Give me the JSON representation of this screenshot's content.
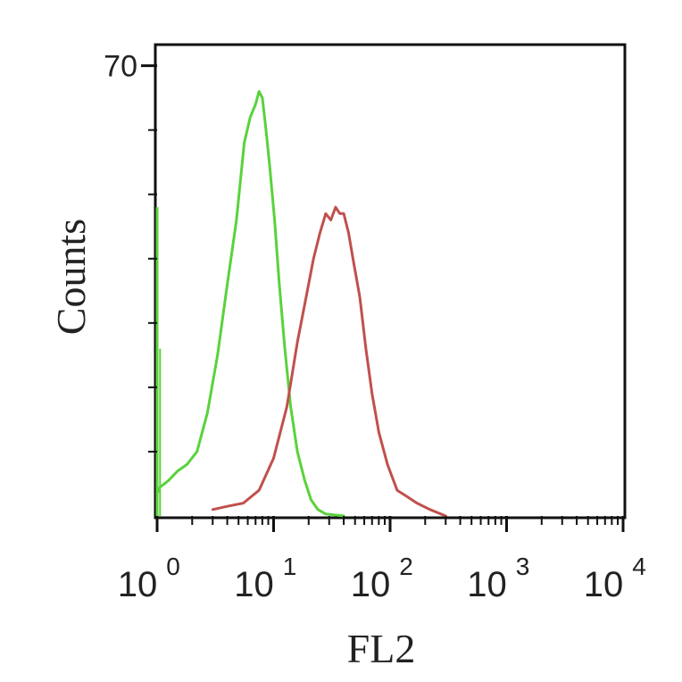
{
  "chart_data": {
    "type": "line",
    "title": "",
    "xlabel": "FL2",
    "ylabel": "Counts",
    "x_scale": "log",
    "xlim": [
      1,
      10000
    ],
    "ylim": [
      0,
      73
    ],
    "x_ticks": [
      {
        "base": "10",
        "exp": "0",
        "value": 1
      },
      {
        "base": "10",
        "exp": "1",
        "value": 10
      },
      {
        "base": "10",
        "exp": "2",
        "value": 100
      },
      {
        "base": "10",
        "exp": "3",
        "value": 1000
      },
      {
        "base": "10",
        "exp": "4",
        "value": 10000
      }
    ],
    "y_ticks": [
      {
        "label": "70",
        "value": 70
      }
    ],
    "grid": false,
    "series": [
      {
        "color": "#5ad23c",
        "x": [
          1.0,
          1.06,
          1.12,
          1.25,
          1.5,
          1.8,
          2.2,
          2.7,
          3.3,
          4.0,
          4.8,
          5.6,
          6.3,
          7.0,
          7.5,
          8.0,
          8.6,
          9.3,
          10.2,
          11.2,
          12.5,
          14.0,
          16.0,
          18.5,
          21.0,
          24.0,
          28.0,
          40.0
        ],
        "y": [
          3.5,
          4.5,
          4.8,
          5.5,
          7.0,
          8.0,
          10.0,
          16.0,
          25.0,
          36.0,
          46.0,
          58.0,
          62.0,
          64.0,
          66.0,
          65.0,
          60.0,
          54.0,
          46.0,
          36.0,
          26.0,
          17.0,
          10.0,
          5.5,
          2.5,
          1.0,
          0.3,
          0.0
        ]
      },
      {
        "color": "#c0504d",
        "x": [
          3.0,
          4.0,
          5.5,
          7.5,
          10.0,
          13.0,
          16.0,
          19.0,
          22.0,
          25.0,
          28.0,
          31.0,
          34.0,
          37.0,
          40.0,
          44.0,
          48.0,
          55.0,
          62.0,
          70.0,
          80.0,
          95.0,
          115.0,
          140.0,
          170.0,
          220.0,
          300.0
        ],
        "y": [
          1.0,
          1.5,
          2.0,
          4.0,
          9.0,
          17.0,
          27.0,
          34.0,
          40.0,
          44.0,
          47.0,
          46.0,
          48.0,
          47.0,
          47.0,
          44.0,
          40.0,
          34.0,
          26.0,
          19.0,
          13.0,
          8.0,
          4.0,
          3.0,
          2.0,
          1.0,
          0.0
        ]
      }
    ]
  }
}
